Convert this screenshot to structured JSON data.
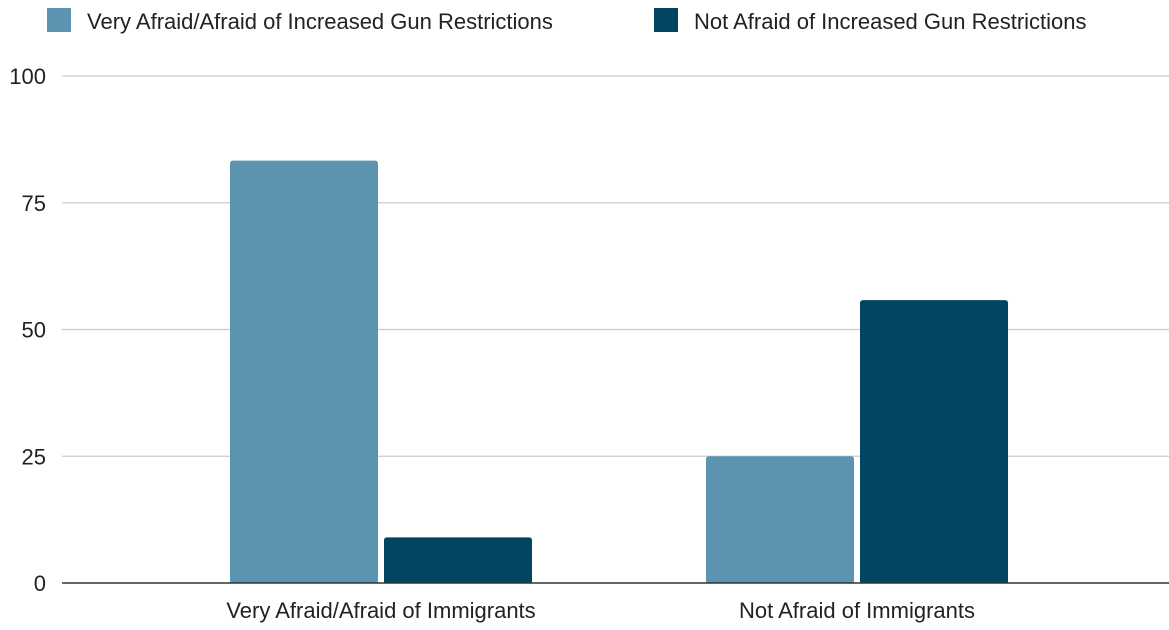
{
  "chart_data": {
    "type": "bar",
    "title": "",
    "xlabel": "",
    "ylabel": "",
    "categories": [
      "Very Afraid/Afraid of Immigrants",
      "Not Afraid of Immigrants"
    ],
    "series": [
      {
        "name": "Very Afraid/Afraid of Increased Gun Restrictions",
        "color": "#5b93b0",
        "values": [
          83.3,
          25
        ]
      },
      {
        "name": "Not Afraid of Increased Gun Restrictions",
        "color": "#014560",
        "values": [
          9,
          55.8
        ]
      }
    ],
    "ylim": [
      0,
      100
    ],
    "yticks": [
      "0",
      "25",
      "50",
      "75",
      "100"
    ],
    "grid": true,
    "legend_position": "top"
  }
}
